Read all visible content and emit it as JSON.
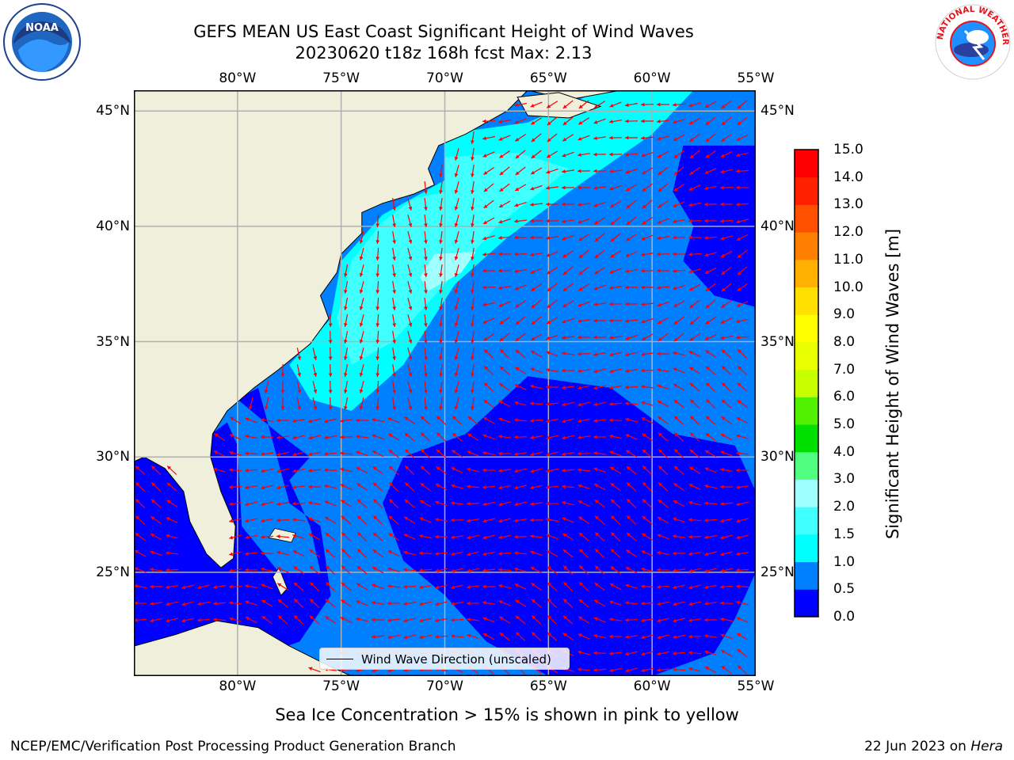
{
  "header": {
    "title_line1": "GEFS MEAN US East Coast Significant Height of Wind Waves",
    "title_line2": "20230620 t18z 168h fcst   Max: 2.13"
  },
  "logos": {
    "left": "noaa-logo",
    "right": "nws-logo",
    "left_text": "NOAA",
    "right_text": "NATIONAL WEATHER SERVICE"
  },
  "map": {
    "lon_ticks": [
      "80°W",
      "75°W",
      "70°W",
      "65°W",
      "60°W",
      "55°W"
    ],
    "lat_ticks": [
      "45°N",
      "40°N",
      "35°N",
      "30°N",
      "25°N"
    ],
    "legend_label": "Wind Wave Direction (unscaled)",
    "land_color": "#efefdc",
    "arrow_color": "#ff0000"
  },
  "colorbar": {
    "label": "Significant Height of Wind Waves [m]",
    "ticks": [
      "15.0",
      "14.0",
      "13.0",
      "12.0",
      "11.0",
      "10.0",
      "9.0",
      "8.0",
      "7.0",
      "6.0",
      "5.0",
      "4.0",
      "3.0",
      "2.0",
      "1.5",
      "1.0",
      "0.5",
      "0.0"
    ],
    "colors": [
      "#0000ff",
      "#0080ff",
      "#00ffff",
      "#40ffff",
      "#a0ffff",
      "#50ff80",
      "#00e000",
      "#50f000",
      "#c8ff00",
      "#e8ff00",
      "#ffff00",
      "#ffe000",
      "#ffb000",
      "#ff8000",
      "#ff5000",
      "#ff2000",
      "#ff0000"
    ]
  },
  "chart_data": {
    "type": "heatmap",
    "title": "GEFS MEAN US East Coast Significant Height of Wind Waves",
    "subtitle": "20230620 t18z 168h fcst   Max: 2.13",
    "x_ticks": [
      "80°W",
      "75°W",
      "70°W",
      "65°W",
      "60°W",
      "55°W"
    ],
    "y_ticks": [
      "45°N",
      "40°N",
      "35°N",
      "30°N",
      "25°N"
    ],
    "xlim": [
      -85,
      -55
    ],
    "ylim": [
      20.5,
      45.9
    ],
    "colorbar_label": "Significant Height of Wind Waves [m]",
    "levels": [
      0.0,
      0.5,
      1.0,
      1.5,
      2.0,
      3.0,
      4.0,
      5.0,
      6.0,
      7.0,
      8.0,
      9.0,
      10.0,
      11.0,
      12.0,
      13.0,
      14.0,
      15.0
    ],
    "max_value": 2.13,
    "legend": "Wind Wave Direction (unscaled)",
    "grid": true
  },
  "notes": {
    "ice": "Sea Ice Concentration > 15% is shown in pink to yellow"
  },
  "footer": {
    "left": "NCEP/EMC/Verification Post Processing Product Generation Branch",
    "date": "22 Jun 2023 on",
    "host": "Hera"
  }
}
